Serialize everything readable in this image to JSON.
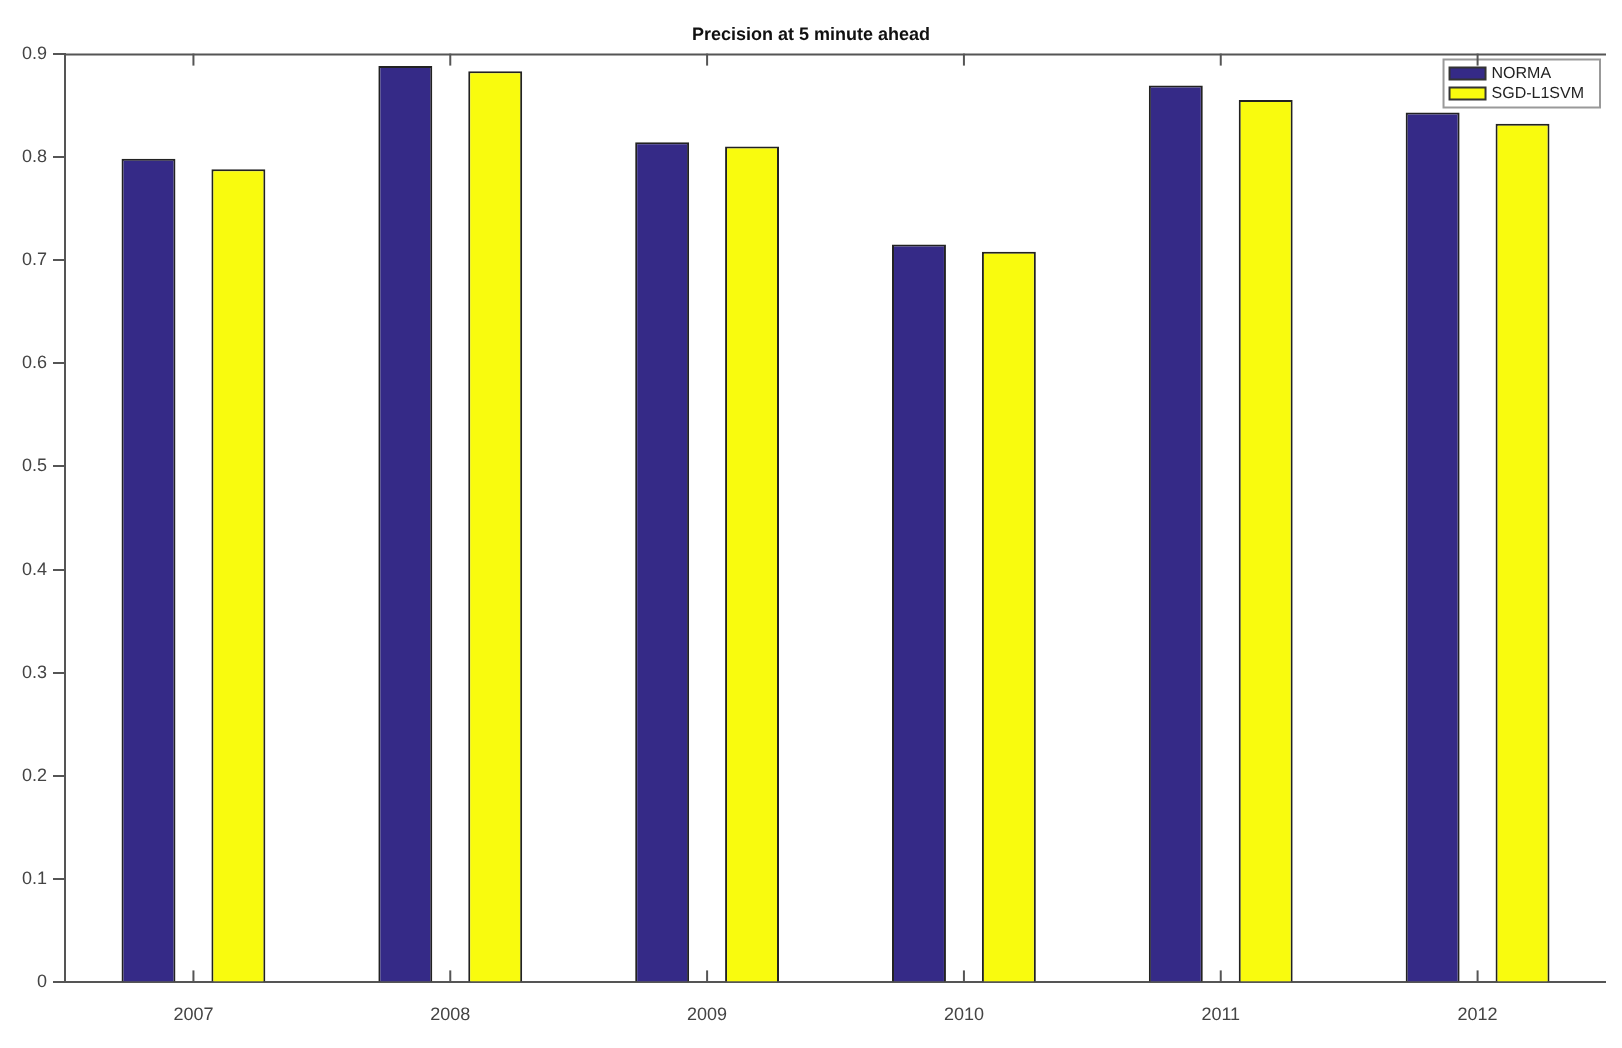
{
  "chart_data": {
    "type": "bar",
    "title": "Precision at 5 minute ahead",
    "categories": [
      "2007",
      "2008",
      "2009",
      "2010",
      "2011",
      "2012"
    ],
    "series": [
      {
        "name": "NORMA",
        "color": "#352a87",
        "values": [
          0.798,
          0.888,
          0.814,
          0.715,
          0.869,
          0.843
        ]
      },
      {
        "name": "SGD-L1SVM",
        "color": "#f9fb0e",
        "values": [
          0.788,
          0.883,
          0.81,
          0.708,
          0.855,
          0.832
        ]
      }
    ],
    "ylim": [
      0,
      0.9
    ],
    "yticks": [
      0,
      0.1,
      0.2,
      0.3,
      0.4,
      0.5,
      0.6,
      0.7,
      0.8,
      0.9
    ],
    "grid": false,
    "legend": "top right"
  }
}
